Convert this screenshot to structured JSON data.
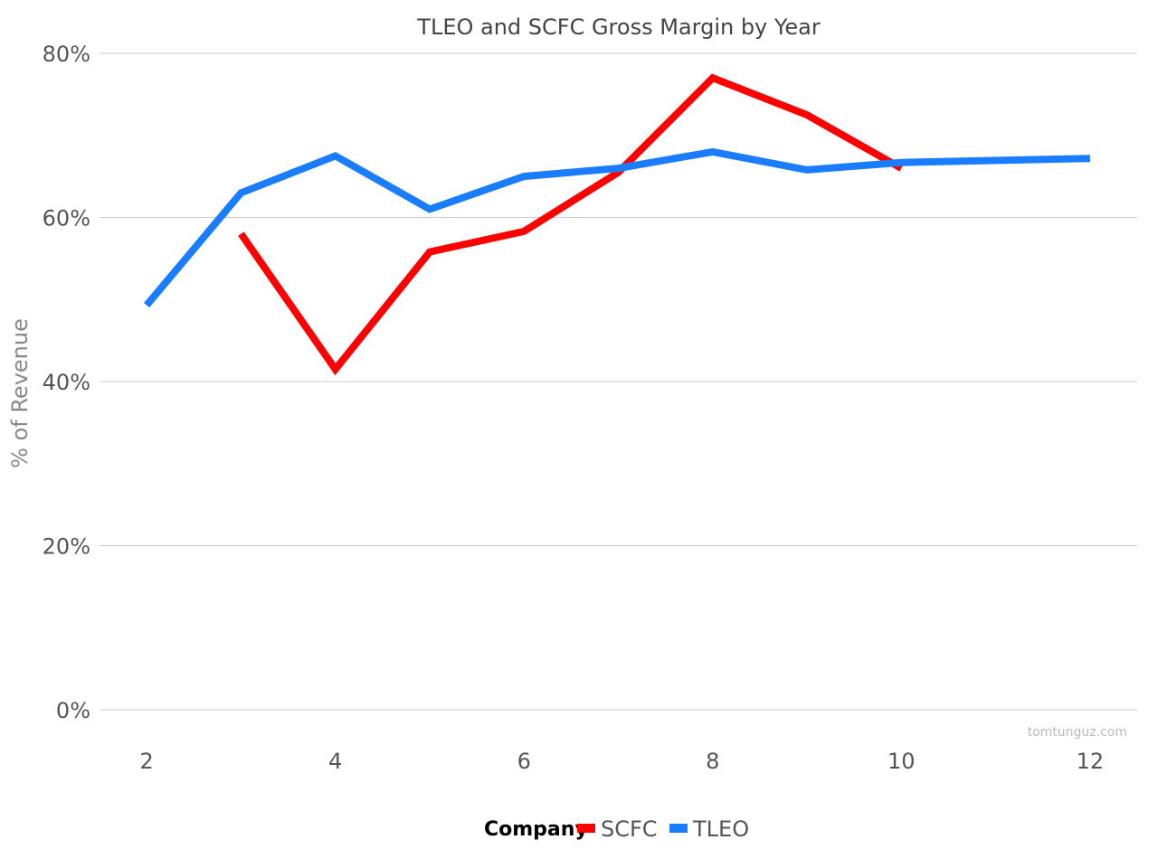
{
  "chart_data": {
    "type": "line",
    "title": "TLEO and SCFC Gross Margin by Year",
    "xlabel": "",
    "ylabel": "% of Revenue",
    "xlim": [
      1.5,
      12.5
    ],
    "ylim": [
      0,
      80
    ],
    "xticks": [
      2,
      4,
      6,
      8,
      10,
      12
    ],
    "yticks": [
      0,
      20,
      40,
      60,
      80
    ],
    "ytick_labels": [
      "0%",
      "20%",
      "40%",
      "60%",
      "80%"
    ],
    "grid": true,
    "legend": {
      "title": "Company",
      "position": "bottom"
    },
    "series": [
      {
        "name": "SCFC",
        "color": "#ff0000",
        "x": [
          3,
          4,
          5,
          6,
          7,
          8,
          9,
          10
        ],
        "y": [
          58,
          41.5,
          55.8,
          58.3,
          65.5,
          77,
          72.5,
          66
        ]
      },
      {
        "name": "TLEO",
        "color": "#1a7dff",
        "x": [
          2,
          3,
          4,
          5,
          6,
          7,
          8,
          9,
          10,
          12
        ],
        "y": [
          49.3,
          63,
          67.5,
          61,
          65,
          66,
          68,
          65.8,
          66.7,
          67.2
        ]
      }
    ],
    "watermark": "tomtunguz.com"
  }
}
